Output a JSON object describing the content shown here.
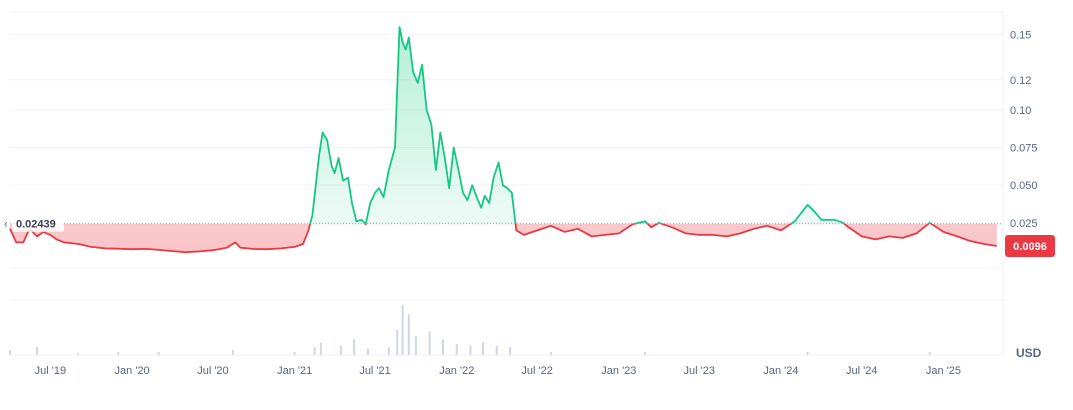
{
  "chart_data": {
    "type": "area",
    "title": "",
    "xlabel": "",
    "ylabel": "",
    "currency_label": "USD",
    "baseline": {
      "value": 0.02439,
      "label": "0.02439"
    },
    "current": {
      "value": 0.0096,
      "label": "0.0096"
    },
    "ylim": [
      -0.005,
      0.165
    ],
    "y_ticks": [
      "0.15",
      "0.12",
      "0.10",
      "0.075",
      "0.050",
      "0.025"
    ],
    "x_ticks": [
      "Jul '19",
      "Jan '20",
      "Jul '20",
      "Jan '21",
      "Jul '21",
      "Jan '22",
      "Jul '22",
      "Jan '23",
      "Jul '23",
      "Jan '24",
      "Jul '24",
      "Jan '25"
    ],
    "grid": true,
    "colors": {
      "up": "#16c784",
      "down": "#ea3943",
      "up_fill": "#16c784",
      "down_fill": "#ea3943",
      "grid": "#eff2f5",
      "baseline": "#9ea3ae"
    },
    "series": [
      {
        "values": [
          [
            "2019-04-01",
            0.021
          ],
          [
            "2019-04-15",
            0.012
          ],
          [
            "2019-05-01",
            0.012
          ],
          [
            "2019-05-15",
            0.021
          ],
          [
            "2019-06-01",
            0.016
          ],
          [
            "2019-06-15",
            0.019
          ],
          [
            "2019-07-01",
            0.017
          ],
          [
            "2019-07-15",
            0.014
          ],
          [
            "2019-08-01",
            0.012
          ],
          [
            "2019-09-01",
            0.011
          ],
          [
            "2019-10-01",
            0.009
          ],
          [
            "2019-11-01",
            0.008
          ],
          [
            "2019-12-01",
            0.0078
          ],
          [
            "2020-01-01",
            0.0075
          ],
          [
            "2020-02-01",
            0.0077
          ],
          [
            "2020-03-01",
            0.007
          ],
          [
            "2020-04-01",
            0.0062
          ],
          [
            "2020-05-01",
            0.0055
          ],
          [
            "2020-06-01",
            0.006
          ],
          [
            "2020-07-01",
            0.0068
          ],
          [
            "2020-08-01",
            0.0085
          ],
          [
            "2020-08-20",
            0.012
          ],
          [
            "2020-09-01",
            0.0085
          ],
          [
            "2020-10-01",
            0.0076
          ],
          [
            "2020-11-01",
            0.0075
          ],
          [
            "2020-12-01",
            0.008
          ],
          [
            "2021-01-01",
            0.009
          ],
          [
            "2021-01-20",
            0.011
          ],
          [
            "2021-02-01",
            0.02
          ],
          [
            "2021-02-10",
            0.03
          ],
          [
            "2021-02-25",
            0.07
          ],
          [
            "2021-03-05",
            0.085
          ],
          [
            "2021-03-15",
            0.08
          ],
          [
            "2021-03-25",
            0.063
          ],
          [
            "2021-04-01",
            0.058
          ],
          [
            "2021-04-10",
            0.068
          ],
          [
            "2021-04-20",
            0.053
          ],
          [
            "2021-05-01",
            0.055
          ],
          [
            "2021-05-10",
            0.038
          ],
          [
            "2021-05-20",
            0.026
          ],
          [
            "2021-06-01",
            0.027
          ],
          [
            "2021-06-10",
            0.024
          ],
          [
            "2021-06-20",
            0.038
          ],
          [
            "2021-07-01",
            0.045
          ],
          [
            "2021-07-10",
            0.048
          ],
          [
            "2021-07-20",
            0.042
          ],
          [
            "2021-08-01",
            0.06
          ],
          [
            "2021-08-15",
            0.075
          ],
          [
            "2021-08-25",
            0.155
          ],
          [
            "2021-09-01",
            0.145
          ],
          [
            "2021-09-08",
            0.14
          ],
          [
            "2021-09-15",
            0.148
          ],
          [
            "2021-09-25",
            0.125
          ],
          [
            "2021-10-05",
            0.118
          ],
          [
            "2021-10-15",
            0.13
          ],
          [
            "2021-10-25",
            0.1
          ],
          [
            "2021-11-05",
            0.09
          ],
          [
            "2021-11-15",
            0.06
          ],
          [
            "2021-11-25",
            0.085
          ],
          [
            "2021-12-05",
            0.068
          ],
          [
            "2021-12-15",
            0.048
          ],
          [
            "2021-12-25",
            0.075
          ],
          [
            "2022-01-05",
            0.06
          ],
          [
            "2022-01-15",
            0.045
          ],
          [
            "2022-01-25",
            0.04
          ],
          [
            "2022-02-05",
            0.05
          ],
          [
            "2022-02-15",
            0.042
          ],
          [
            "2022-02-25",
            0.035
          ],
          [
            "2022-03-05",
            0.043
          ],
          [
            "2022-03-15",
            0.038
          ],
          [
            "2022-03-25",
            0.055
          ],
          [
            "2022-04-05",
            0.065
          ],
          [
            "2022-04-15",
            0.05
          ],
          [
            "2022-04-25",
            0.048
          ],
          [
            "2022-05-05",
            0.045
          ],
          [
            "2022-05-15",
            0.02
          ],
          [
            "2022-06-01",
            0.017
          ],
          [
            "2022-07-01",
            0.02
          ],
          [
            "2022-08-01",
            0.023
          ],
          [
            "2022-09-01",
            0.019
          ],
          [
            "2022-10-01",
            0.021
          ],
          [
            "2022-11-01",
            0.016
          ],
          [
            "2022-12-01",
            0.017
          ],
          [
            "2023-01-01",
            0.018
          ],
          [
            "2023-02-01",
            0.024
          ],
          [
            "2023-03-01",
            0.026
          ],
          [
            "2023-03-15",
            0.022
          ],
          [
            "2023-04-01",
            0.025
          ],
          [
            "2023-05-01",
            0.022
          ],
          [
            "2023-06-01",
            0.018
          ],
          [
            "2023-07-01",
            0.017
          ],
          [
            "2023-08-01",
            0.017
          ],
          [
            "2023-09-01",
            0.016
          ],
          [
            "2023-10-01",
            0.018
          ],
          [
            "2023-11-01",
            0.021
          ],
          [
            "2023-12-01",
            0.023
          ],
          [
            "2024-01-01",
            0.02
          ],
          [
            "2024-02-01",
            0.026
          ],
          [
            "2024-03-01",
            0.037
          ],
          [
            "2024-03-15",
            0.033
          ],
          [
            "2024-04-01",
            0.027
          ],
          [
            "2024-05-01",
            0.027
          ],
          [
            "2024-05-20",
            0.025
          ],
          [
            "2024-06-01",
            0.022
          ],
          [
            "2024-07-01",
            0.016
          ],
          [
            "2024-08-01",
            0.014
          ],
          [
            "2024-09-01",
            0.016
          ],
          [
            "2024-10-01",
            0.015
          ],
          [
            "2024-11-01",
            0.018
          ],
          [
            "2024-12-01",
            0.025
          ],
          [
            "2025-01-01",
            0.019
          ],
          [
            "2025-02-01",
            0.016
          ],
          [
            "2025-03-01",
            0.013
          ],
          [
            "2025-04-01",
            0.011
          ],
          [
            "2025-05-01",
            0.0096
          ]
        ]
      }
    ],
    "volume_bars": [
      [
        "2019-04-01",
        0.3
      ],
      [
        "2019-06-01",
        0.5
      ],
      [
        "2019-09-01",
        0.1
      ],
      [
        "2019-12-01",
        0.2
      ],
      [
        "2020-03-01",
        0.2
      ],
      [
        "2020-08-15",
        0.3
      ],
      [
        "2021-01-01",
        0.2
      ],
      [
        "2021-02-15",
        0.5
      ],
      [
        "2021-03-01",
        0.8
      ],
      [
        "2021-04-15",
        0.6
      ],
      [
        "2021-05-15",
        1.0
      ],
      [
        "2021-06-15",
        0.4
      ],
      [
        "2021-08-01",
        0.5
      ],
      [
        "2021-08-20",
        1.6
      ],
      [
        "2021-09-01",
        3.2
      ],
      [
        "2021-09-15",
        2.6
      ],
      [
        "2021-10-01",
        1.2
      ],
      [
        "2021-11-01",
        1.5
      ],
      [
        "2021-12-01",
        1.0
      ],
      [
        "2022-01-01",
        0.7
      ],
      [
        "2022-02-01",
        0.6
      ],
      [
        "2022-03-01",
        0.8
      ],
      [
        "2022-04-01",
        0.6
      ],
      [
        "2022-05-01",
        0.5
      ],
      [
        "2022-08-01",
        0.2
      ],
      [
        "2023-03-01",
        0.2
      ],
      [
        "2024-03-01",
        0.2
      ],
      [
        "2024-12-01",
        0.2
      ]
    ]
  }
}
